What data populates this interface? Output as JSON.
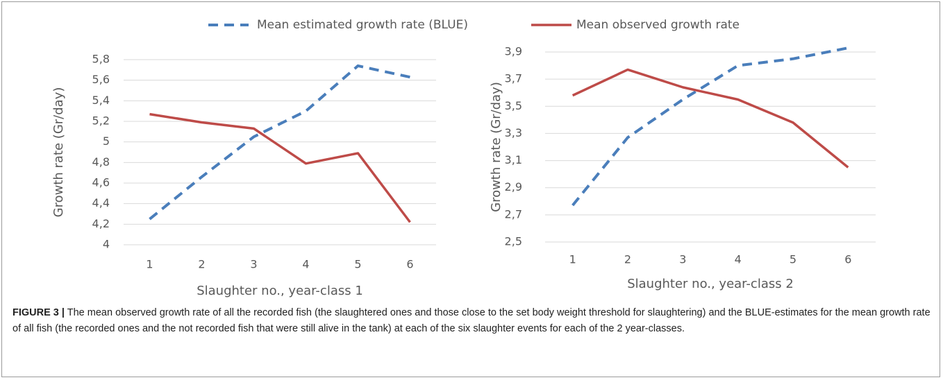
{
  "chart_data": [
    {
      "type": "line",
      "x_label": "Slaughter no., year-class 1",
      "y_label": "Growth rate (Gr/day)",
      "categories": [
        "1",
        "2",
        "3",
        "4",
        "5",
        "6"
      ],
      "series": [
        {
          "name": "Mean estimated growth rate (BLUE)",
          "color": "#4a7ebb",
          "style": "dashed",
          "values": [
            4.25,
            4.66,
            5.05,
            5.3,
            5.74,
            5.63
          ]
        },
        {
          "name": "Mean observed growth rate",
          "color": "#be4b48",
          "style": "solid",
          "values": [
            5.27,
            5.19,
            5.13,
            4.79,
            4.89,
            4.22
          ]
        }
      ],
      "ylim": [
        4,
        5.8
      ],
      "yticks": [
        4,
        {
          "value": 4.2,
          "label": "4,2"
        },
        {
          "value": 4.4,
          "label": "4,4"
        },
        {
          "value": 4.6,
          "label": "4,6"
        },
        {
          "value": 4.8,
          "label": "4,8"
        },
        5,
        {
          "value": 5.2,
          "label": "5,2"
        },
        {
          "value": 5.4,
          "label": "5,4"
        },
        {
          "value": 5.6,
          "label": "5,6"
        },
        {
          "value": 5.8,
          "label": "5,8"
        }
      ],
      "grid": true,
      "legend": "top"
    },
    {
      "type": "line",
      "x_label": "Slaughter no., year-class 2",
      "y_label": "Growth rate (Gr/day)",
      "categories": [
        "1",
        "2",
        "3",
        "4",
        "5",
        "6"
      ],
      "series": [
        {
          "color": "#4a7ebb",
          "style": "dashed",
          "values": [
            2.77,
            3.27,
            3.55,
            3.8,
            3.85,
            3.93
          ]
        },
        {
          "color": "#be4b48",
          "style": "solid",
          "values": [
            3.58,
            3.77,
            3.64,
            3.55,
            3.38,
            3.05
          ]
        }
      ],
      "ylim": [
        2.5,
        3.9
      ],
      "yticks": [
        {
          "value": 2.5,
          "label": "2,5"
        },
        {
          "value": 2.7,
          "label": "2,7"
        },
        {
          "value": 2.9,
          "label": "2,9"
        },
        {
          "value": 3.1,
          "label": "3,1"
        },
        {
          "value": 3.3,
          "label": "3,3"
        },
        {
          "value": 3.5,
          "label": "3,5"
        },
        {
          "value": 3.7,
          "label": "3,7"
        },
        {
          "value": 3.9,
          "label": "3,9"
        }
      ],
      "grid": true
    }
  ],
  "caption": {
    "label": "FIGURE 3 |",
    "text": "The mean observed growth rate of all the recorded fish (the slaughtered ones and those close to the set body weight threshold for slaughtering) and the BLUE-estimates for the mean growth rate of all fish (the recorded ones and the not recorded fish that were still alive in the tank) at each of the six slaughter events for each of the 2 year-classes."
  }
}
